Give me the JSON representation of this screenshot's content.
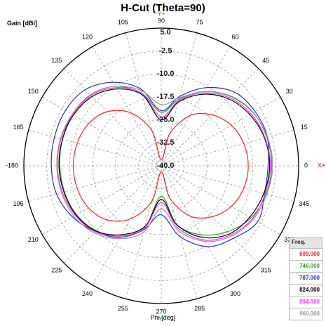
{
  "title": "H-Cut (Theta=90)",
  "ylabel": "Gain [dBi]",
  "xlabel": "Phi [deg]",
  "legend_title": "Freq.",
  "axis_markers": {
    "top": "Y+",
    "bottom": "Y-",
    "right": "X+",
    "left": "X-",
    "top_color": "#2aa02a",
    "bottom_color": "#2aa02a",
    "right_color": "#e02020",
    "left_color": "#e02020"
  },
  "chart_data": {
    "type": "polar",
    "angle_unit": "deg",
    "angle_direction": "counterclockwise",
    "zero_at": "right",
    "r_ticks": [
      "5.0",
      "-2.5",
      "-10.0",
      "-17.5",
      "-25.0",
      "-32.5",
      "-40.0"
    ],
    "r_range": [
      -40,
      5
    ],
    "angle_ticks": [
      "0",
      "15",
      "30",
      "45",
      "60",
      "75",
      "90",
      "105",
      "120",
      "135",
      "150",
      "165",
      "-180",
      "195",
      "210",
      "225",
      "240",
      "255",
      "270",
      "285",
      "300",
      "315",
      "330",
      "345"
    ],
    "grid": true,
    "legend_position": "bottom-right",
    "series": [
      {
        "name": "699.000",
        "color": "#ff2020",
        "phi": [
          0,
          15,
          30,
          45,
          60,
          75,
          90,
          105,
          120,
          135,
          150,
          165,
          180,
          195,
          210,
          225,
          240,
          255,
          270,
          285,
          300,
          315,
          330,
          345
        ],
        "gain": [
          -11.5,
          -12.0,
          -13.5,
          -16.5,
          -21,
          -29,
          -38,
          -28,
          -20,
          -15,
          -12.5,
          -11.5,
          -11.2,
          -11.5,
          -12.5,
          -15,
          -20,
          -28,
          -38,
          -29,
          -21,
          -16.5,
          -13.5,
          -12
        ]
      },
      {
        "name": "746.000",
        "color": "#2aa02a",
        "phi": [
          0,
          15,
          30,
          45,
          60,
          75,
          90,
          105,
          120,
          135,
          150,
          165,
          180,
          195,
          210,
          225,
          240,
          255,
          270,
          285,
          300,
          315,
          330,
          345
        ],
        "gain": [
          -3.8,
          -4.2,
          -5.2,
          -7.8,
          -12,
          -17.5,
          -22.5,
          -15.5,
          -10,
          -7.2,
          -6.5,
          -6.5,
          -6.8,
          -7.2,
          -8,
          -10,
          -13.5,
          -19,
          -30,
          -20,
          -14,
          -9.5,
          -6,
          -4.5
        ]
      },
      {
        "name": "787.000",
        "color": "#2b2bd0",
        "phi": [
          0,
          15,
          30,
          45,
          60,
          75,
          90,
          105,
          120,
          135,
          150,
          165,
          180,
          195,
          210,
          225,
          240,
          255,
          270,
          285,
          300,
          315,
          330,
          345
        ],
        "gain": [
          -5,
          -4,
          -4.5,
          -6,
          -10.5,
          -16.5,
          -22,
          -14,
          -8.5,
          -4.8,
          -3.8,
          -3.8,
          -4,
          -4.5,
          -6.5,
          -9.5,
          -13,
          -18.5,
          -24,
          -16,
          -9.5,
          -6.5,
          -3.5,
          -5
        ]
      },
      {
        "name": "824.000",
        "color": "#000000",
        "phi": [
          0,
          15,
          30,
          45,
          60,
          75,
          90,
          105,
          120,
          135,
          150,
          165,
          180,
          195,
          210,
          225,
          240,
          255,
          270,
          285,
          300,
          315,
          330,
          345
        ],
        "gain": [
          -4.5,
          -5,
          -6.5,
          -9,
          -13,
          -18.5,
          -25,
          -16,
          -11,
          -8,
          -6.8,
          -6.5,
          -6.5,
          -7,
          -7.8,
          -9.8,
          -14,
          -19.5,
          -29,
          -20,
          -13,
          -8.5,
          -6.5,
          -5.2
        ]
      },
      {
        "name": "894.000",
        "color": "#ff30ff",
        "phi": [
          0,
          15,
          30,
          45,
          60,
          75,
          90,
          105,
          120,
          135,
          150,
          165,
          180,
          195,
          210,
          225,
          240,
          255,
          270,
          285,
          300,
          315,
          330,
          345
        ],
        "gain": [
          -4.2,
          -4.8,
          -6,
          -8.5,
          -12.5,
          -18,
          -24,
          -15.5,
          -10.5,
          -7.5,
          -6.5,
          -6,
          -6,
          -6.5,
          -7.5,
          -9.5,
          -13.5,
          -19,
          -28,
          -19,
          -12,
          -8,
          -5.5,
          -4.8
        ]
      },
      {
        "name": "960.000",
        "color": "#999999",
        "phi": [
          0,
          15,
          30,
          45,
          60,
          75,
          90,
          105,
          120,
          135,
          150,
          165,
          180,
          195,
          210,
          225,
          240,
          255,
          270,
          285,
          300,
          315,
          330,
          345
        ],
        "gain": [
          -3.5,
          -4,
          -5.3,
          -8,
          -12,
          -17,
          -20,
          -14.5,
          -10,
          -7.2,
          -6.3,
          -5.8,
          -5.8,
          -6.2,
          -7,
          -9,
          -12.5,
          -17.5,
          -26,
          -18,
          -11.5,
          -7.5,
          -5.2,
          -4.2
        ]
      }
    ]
  }
}
